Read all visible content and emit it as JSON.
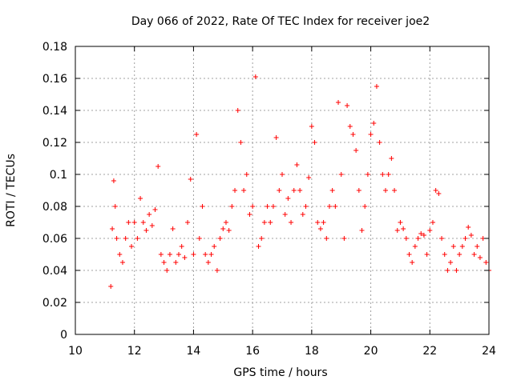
{
  "chart_data": {
    "type": "scatter",
    "title": "Day 066 of 2022, Rate Of TEC Index for receiver joe2",
    "xlabel": "GPS time / hours",
    "ylabel": "ROTI / TECUs",
    "xlim": [
      10,
      24
    ],
    "ylim": [
      0,
      0.18
    ],
    "x_ticks": [
      "10",
      "12",
      "14",
      "16",
      "18",
      "20",
      "22",
      "24"
    ],
    "y_ticks": [
      "0",
      "0.02",
      "0.04",
      "0.06",
      "0.08",
      "0.1",
      "0.12",
      "0.14",
      "0.16",
      "0.18"
    ],
    "grid": true,
    "marker": "plus",
    "color": "#ff0000",
    "series": [
      {
        "x": [
          11.2,
          11.25,
          11.3,
          11.35,
          11.4,
          11.5,
          11.6,
          11.7,
          11.8,
          11.9,
          12.0,
          12.1,
          12.2,
          12.3,
          12.4,
          12.5,
          12.6,
          12.7,
          12.8,
          12.9,
          13.0,
          13.1,
          13.2,
          13.3,
          13.4,
          13.5,
          13.6,
          13.7,
          13.8,
          13.9,
          14.0,
          14.1,
          14.2,
          14.3,
          14.4,
          14.5,
          14.6,
          14.7,
          14.8,
          14.9,
          15.0,
          15.1,
          15.2,
          15.3,
          15.4,
          15.5,
          15.6,
          15.7,
          15.8,
          15.9,
          16.0,
          16.1,
          16.2,
          16.3,
          16.4,
          16.5,
          16.6,
          16.7,
          16.8,
          16.9,
          17.0,
          17.1,
          17.2,
          17.3,
          17.4,
          17.5,
          17.6,
          17.7,
          17.8,
          17.9,
          18.0,
          18.1,
          18.2,
          18.3,
          18.4,
          18.5,
          18.6,
          18.7,
          18.8,
          18.9,
          19.0,
          19.1,
          19.2,
          19.3,
          19.4,
          19.5,
          19.6,
          19.7,
          19.8,
          19.9,
          20.0,
          20.1,
          20.2,
          20.3,
          20.4,
          20.5,
          20.6,
          20.7,
          20.8,
          20.9,
          21.0,
          21.1,
          21.2,
          21.3,
          21.4,
          21.5,
          21.6,
          21.7,
          21.8,
          21.9,
          22.0,
          22.1,
          22.2,
          22.3,
          22.4,
          22.5,
          22.6,
          22.7,
          22.8,
          22.9,
          23.0,
          23.1,
          23.2,
          23.3,
          23.4,
          23.5,
          23.6,
          23.7,
          23.8,
          23.9,
          24.0
        ],
        "y": [
          0.03,
          0.066,
          0.096,
          0.08,
          0.06,
          0.05,
          0.045,
          0.06,
          0.07,
          0.055,
          0.07,
          0.06,
          0.085,
          0.07,
          0.065,
          0.075,
          0.068,
          0.078,
          0.105,
          0.05,
          0.045,
          0.04,
          0.05,
          0.066,
          0.045,
          0.05,
          0.055,
          0.048,
          0.07,
          0.097,
          0.05,
          0.125,
          0.06,
          0.08,
          0.05,
          0.045,
          0.05,
          0.055,
          0.04,
          0.06,
          0.066,
          0.07,
          0.065,
          0.08,
          0.09,
          0.14,
          0.12,
          0.09,
          0.1,
          0.075,
          0.08,
          0.161,
          0.055,
          0.06,
          0.07,
          0.08,
          0.07,
          0.08,
          0.123,
          0.09,
          0.1,
          0.075,
          0.085,
          0.07,
          0.09,
          0.106,
          0.09,
          0.075,
          0.08,
          0.098,
          0.13,
          0.12,
          0.07,
          0.066,
          0.07,
          0.06,
          0.08,
          0.09,
          0.08,
          0.145,
          0.1,
          0.06,
          0.143,
          0.13,
          0.125,
          0.115,
          0.09,
          0.065,
          0.08,
          0.1,
          0.125,
          0.132,
          0.155,
          0.12,
          0.1,
          0.09,
          0.1,
          0.11,
          0.09,
          0.065,
          0.07,
          0.066,
          0.06,
          0.05,
          0.045,
          0.055,
          0.06,
          0.063,
          0.062,
          0.05,
          0.065,
          0.07,
          0.09,
          0.088,
          0.06,
          0.05,
          0.04,
          0.045,
          0.055,
          0.04,
          0.05,
          0.055,
          0.06,
          0.067,
          0.062,
          0.05,
          0.055,
          0.048,
          0.06,
          0.045,
          0.04
        ]
      }
    ]
  }
}
